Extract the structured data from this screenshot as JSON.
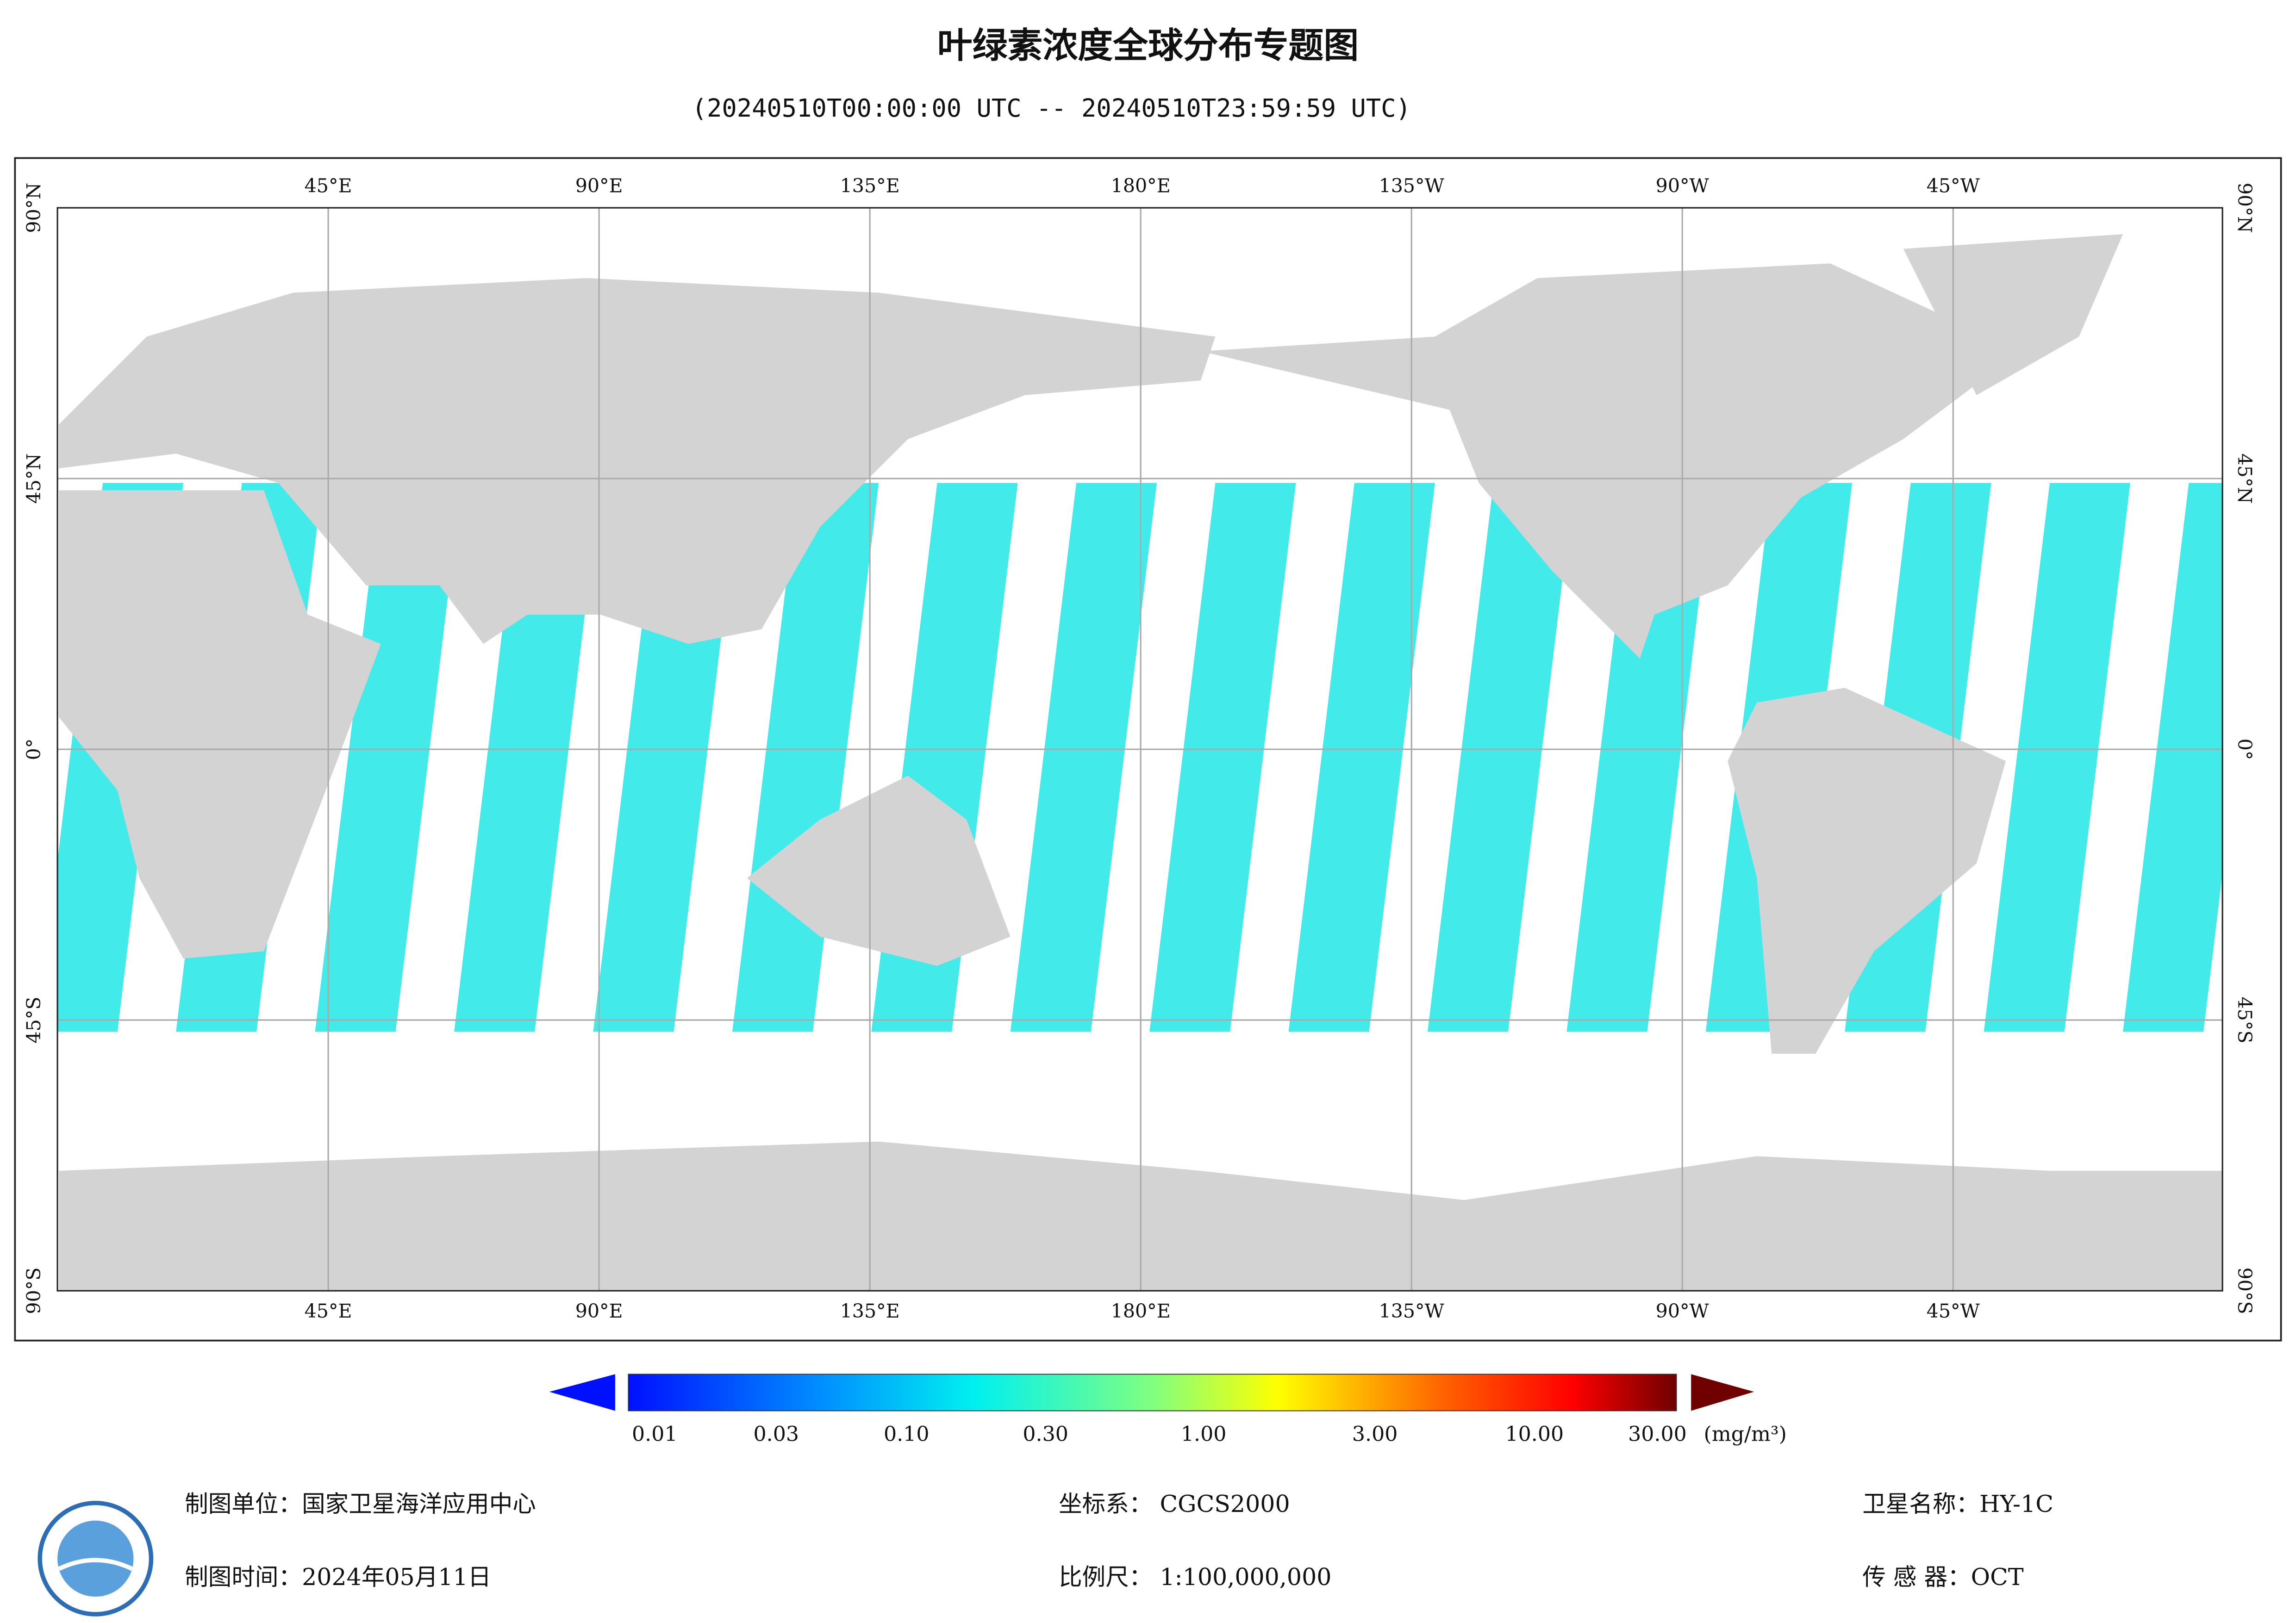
{
  "title": "叶绿素浓度全球分布专题图",
  "subtitle": "(20240510T00:00:00 UTC -- 20240510T23:59:59 UTC)",
  "map": {
    "top_lon_labels": [
      "45°E",
      "90°E",
      "135°E",
      "180°E",
      "135°W",
      "90°W",
      "45°W"
    ],
    "bottom_lon_labels": [
      "45°E",
      "90°E",
      "135°E",
      "180°E",
      "135°W",
      "90°W",
      "45°W"
    ],
    "left_lat_labels": [
      "90°N",
      "45°N",
      "0°",
      "45°S",
      "90°S"
    ],
    "right_lat_labels": [
      "90°N",
      "45°N",
      "0°",
      "45°S",
      "90°S"
    ]
  },
  "colorbar": {
    "ticks": [
      "0.01",
      "0.03",
      "0.10",
      "0.30",
      "1.00",
      "3.00",
      "10.00",
      "30.00"
    ],
    "unit": "(mg/m³)"
  },
  "footer": {
    "unit": "制图单位：国家卫星海洋应用中心",
    "date": "制图时间：2024年05月11日",
    "crs": "坐标系：  CGCS2000",
    "scale": "比例尺：  1:100,000,000",
    "satellite": "卫星名称：HY-1C",
    "sensor": "传 感 器：OCT"
  }
}
